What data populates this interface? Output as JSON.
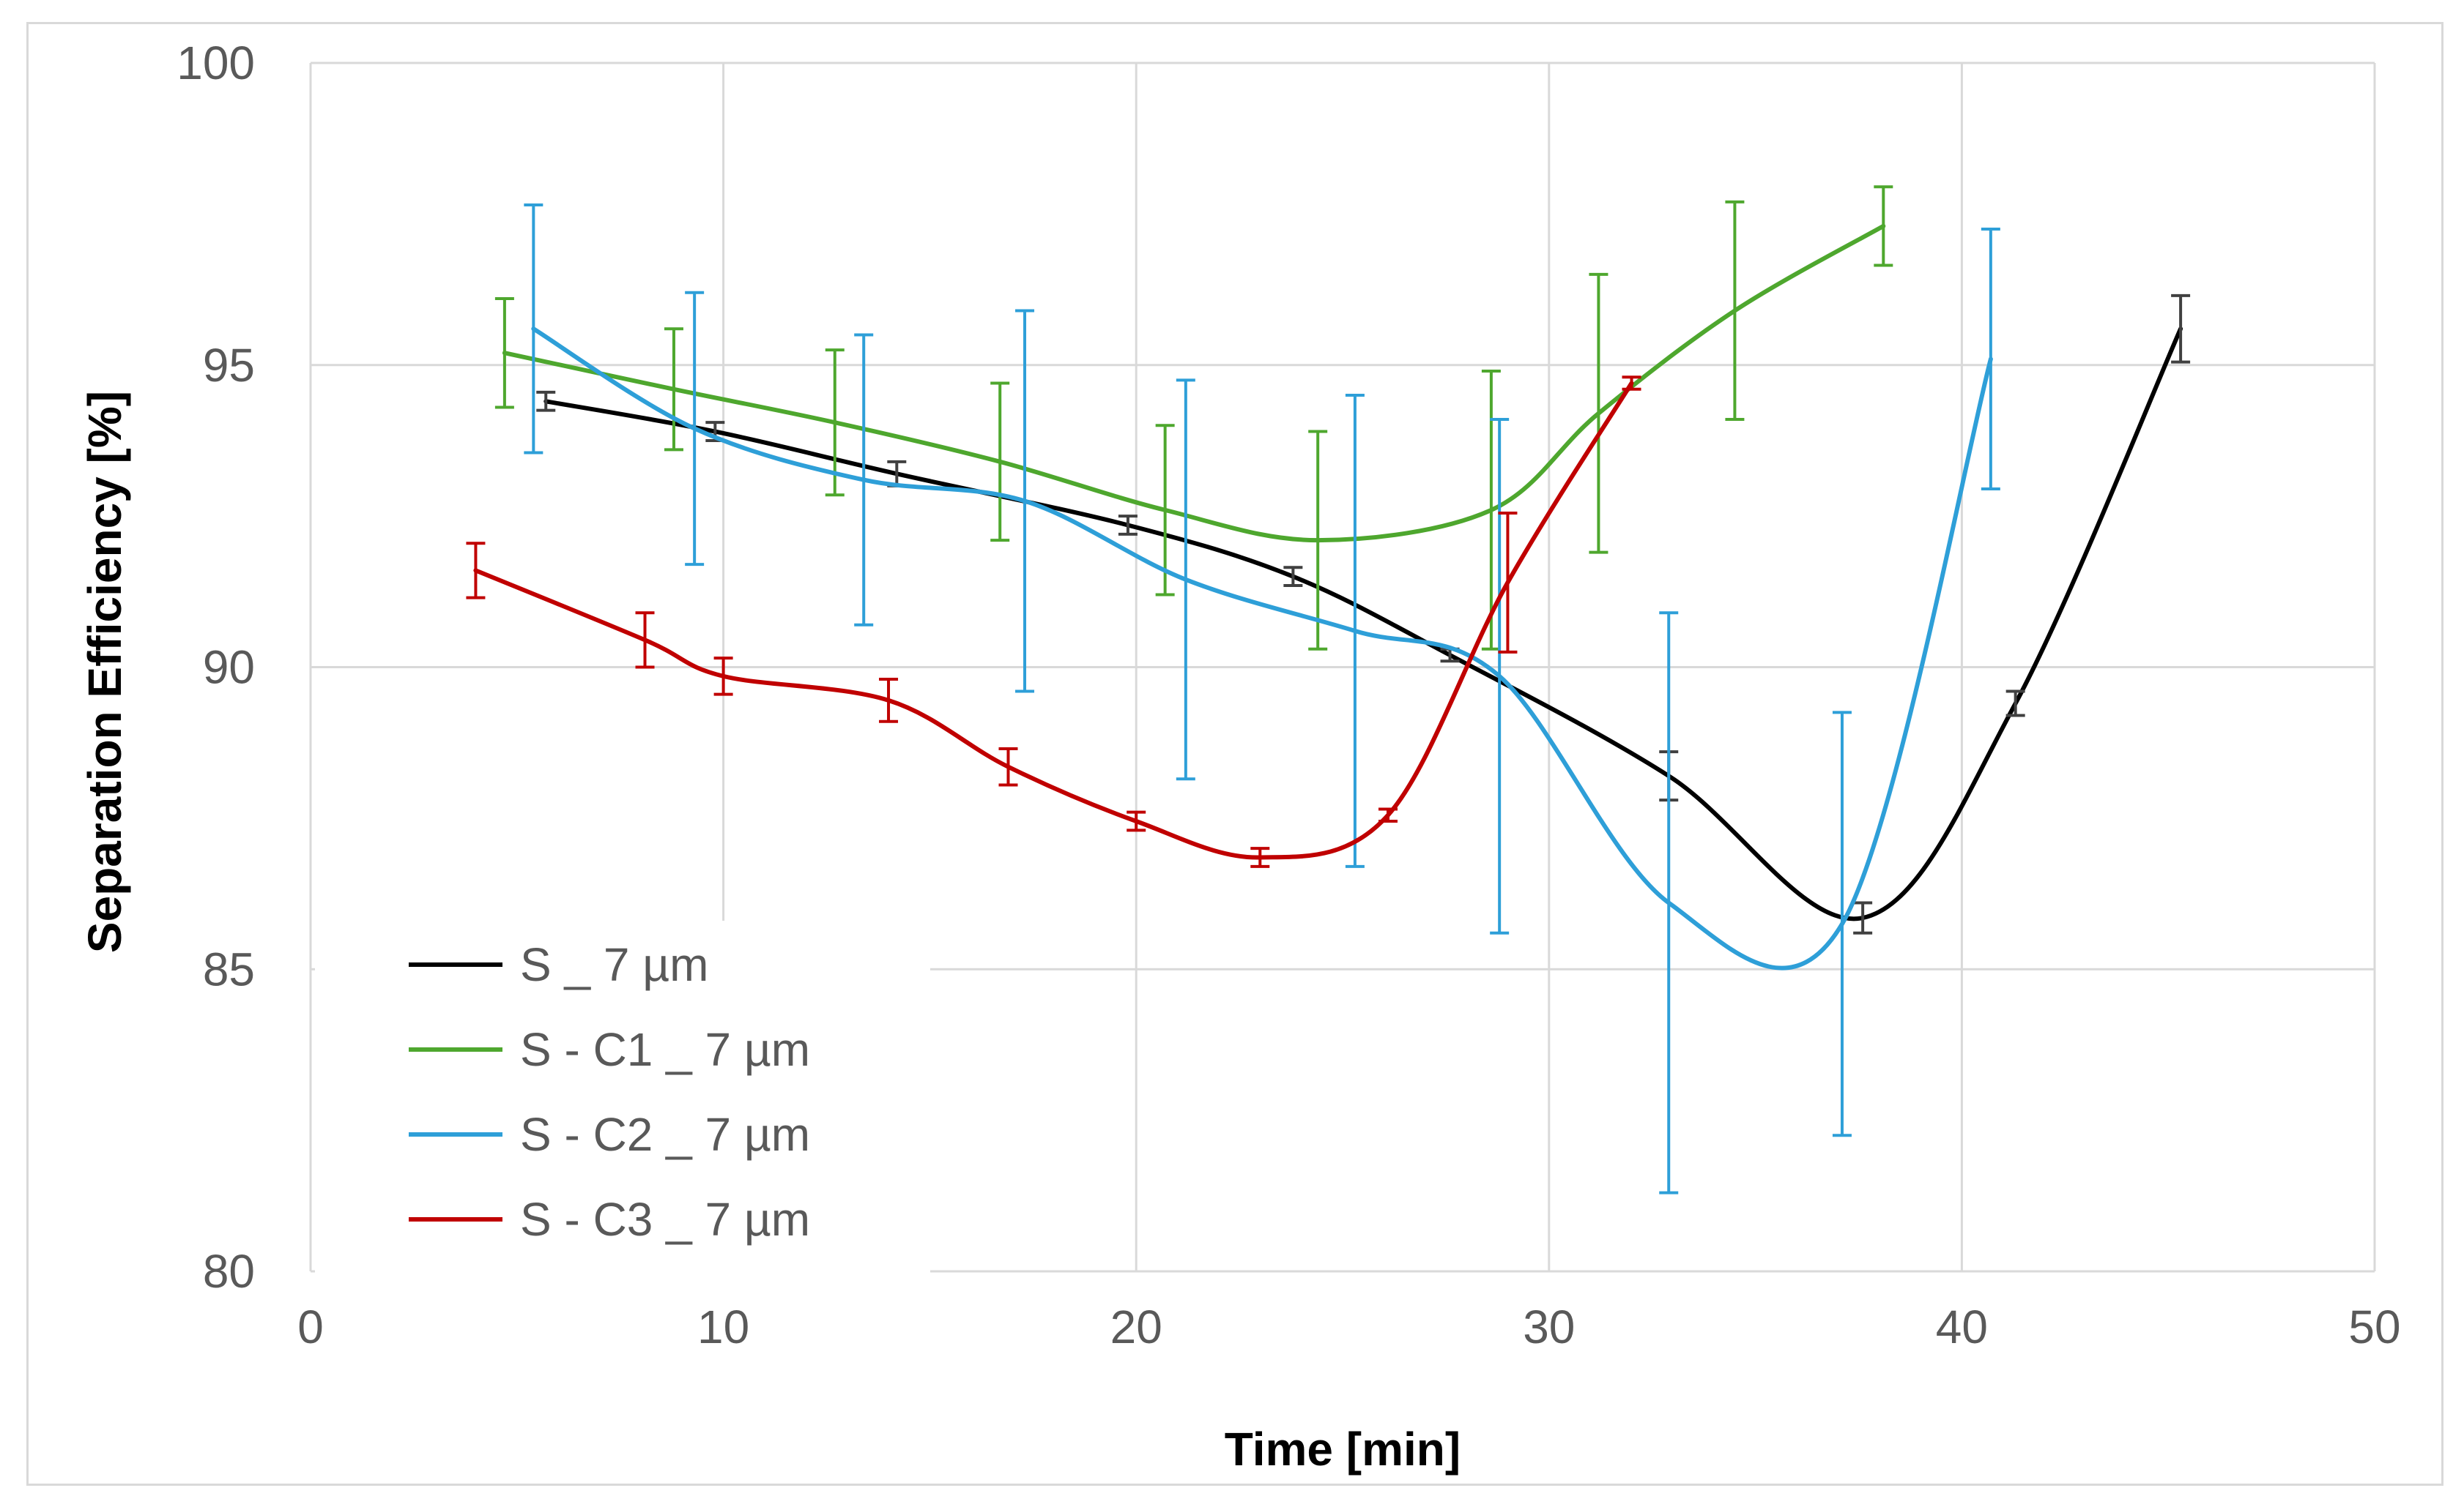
{
  "chart_data": {
    "type": "line",
    "title": "",
    "xlabel": "Time [min]",
    "ylabel": "Separation Efficiency [%]",
    "xlim": [
      0,
      50
    ],
    "ylim": [
      80,
      100
    ],
    "xticks": [
      0,
      10,
      20,
      30,
      40,
      50
    ],
    "yticks": [
      80,
      85,
      90,
      95,
      100
    ],
    "grid": true,
    "legend_position": "bottom-left",
    "series": [
      {
        "name": "S _ 7 µm",
        "color": "#000000",
        "error_color": "#404040",
        "points": [
          {
            "x": 5.7,
            "y": 94.4,
            "err": 0.15
          },
          {
            "x": 9.8,
            "y": 93.9,
            "err": 0.15
          },
          {
            "x": 14.2,
            "y": 93.2,
            "err": 0.2
          },
          {
            "x": 19.8,
            "y": 92.35,
            "err": 0.15
          },
          {
            "x": 23.8,
            "y": 91.5,
            "err": 0.15
          },
          {
            "x": 27.6,
            "y": 90.2,
            "err": 0.1
          },
          {
            "x": 32.9,
            "y": 88.2,
            "err": 0.4
          },
          {
            "x": 37.6,
            "y": 85.85,
            "err": 0.25
          },
          {
            "x": 41.3,
            "y": 89.4,
            "err": 0.2
          },
          {
            "x": 45.3,
            "y": 95.6,
            "err": 0.55
          }
        ]
      },
      {
        "name": "S - C1 _ 7 µm",
        "color": "#4ea72e",
        "error_color": "#4ea72e",
        "points": [
          {
            "x": 4.7,
            "y": 95.2,
            "err": 0.9
          },
          {
            "x": 8.8,
            "y": 94.6,
            "err": 1.0
          },
          {
            "x": 12.7,
            "y": 94.05,
            "err": 1.2
          },
          {
            "x": 16.7,
            "y": 93.4,
            "err": 1.3
          },
          {
            "x": 20.7,
            "y": 92.6,
            "err": 1.4
          },
          {
            "x": 24.4,
            "y": 92.1,
            "err": 1.8
          },
          {
            "x": 28.6,
            "y": 92.6,
            "err": 2.3
          },
          {
            "x": 31.2,
            "y": 94.2,
            "err": 2.3
          },
          {
            "x": 34.5,
            "y": 95.9,
            "err": 1.8
          },
          {
            "x": 38.1,
            "y": 97.3,
            "err": 0.65
          }
        ]
      },
      {
        "name": "S - C2 _ 7 µm",
        "color": "#2e9fd8",
        "error_color": "#2e9fd8",
        "points": [
          {
            "x": 5.4,
            "y": 95.6,
            "err": 2.05
          },
          {
            "x": 9.3,
            "y": 93.95,
            "err": 2.25
          },
          {
            "x": 13.4,
            "y": 93.1,
            "err": 2.4
          },
          {
            "x": 17.3,
            "y": 92.75,
            "err": 3.15
          },
          {
            "x": 21.2,
            "y": 91.45,
            "err": 3.3
          },
          {
            "x": 25.3,
            "y": 90.6,
            "err": 3.9
          },
          {
            "x": 28.8,
            "y": 89.85,
            "err": 4.25
          },
          {
            "x": 32.9,
            "y": 86.1,
            "err": 4.8
          },
          {
            "x": 37.1,
            "y": 85.75,
            "err": 3.5
          },
          {
            "x": 40.7,
            "y": 95.1,
            "err": 2.15
          }
        ]
      },
      {
        "name": "S - C3 _ 7 µm",
        "color": "#c00000",
        "error_color": "#c00000",
        "points": [
          {
            "x": 4.0,
            "y": 91.6,
            "err": 0.45
          },
          {
            "x": 8.1,
            "y": 90.45,
            "err": 0.45
          },
          {
            "x": 10.0,
            "y": 89.85,
            "err": 0.3
          },
          {
            "x": 14.0,
            "y": 89.45,
            "err": 0.35
          },
          {
            "x": 16.9,
            "y": 88.35,
            "err": 0.3
          },
          {
            "x": 20.0,
            "y": 87.45,
            "err": 0.15
          },
          {
            "x": 23.0,
            "y": 86.85,
            "err": 0.15
          },
          {
            "x": 26.1,
            "y": 87.55,
            "err": 0.1
          },
          {
            "x": 29.0,
            "y": 91.4,
            "err": 1.15
          },
          {
            "x": 32.0,
            "y": 94.7,
            "err": 0.1
          }
        ]
      }
    ]
  }
}
